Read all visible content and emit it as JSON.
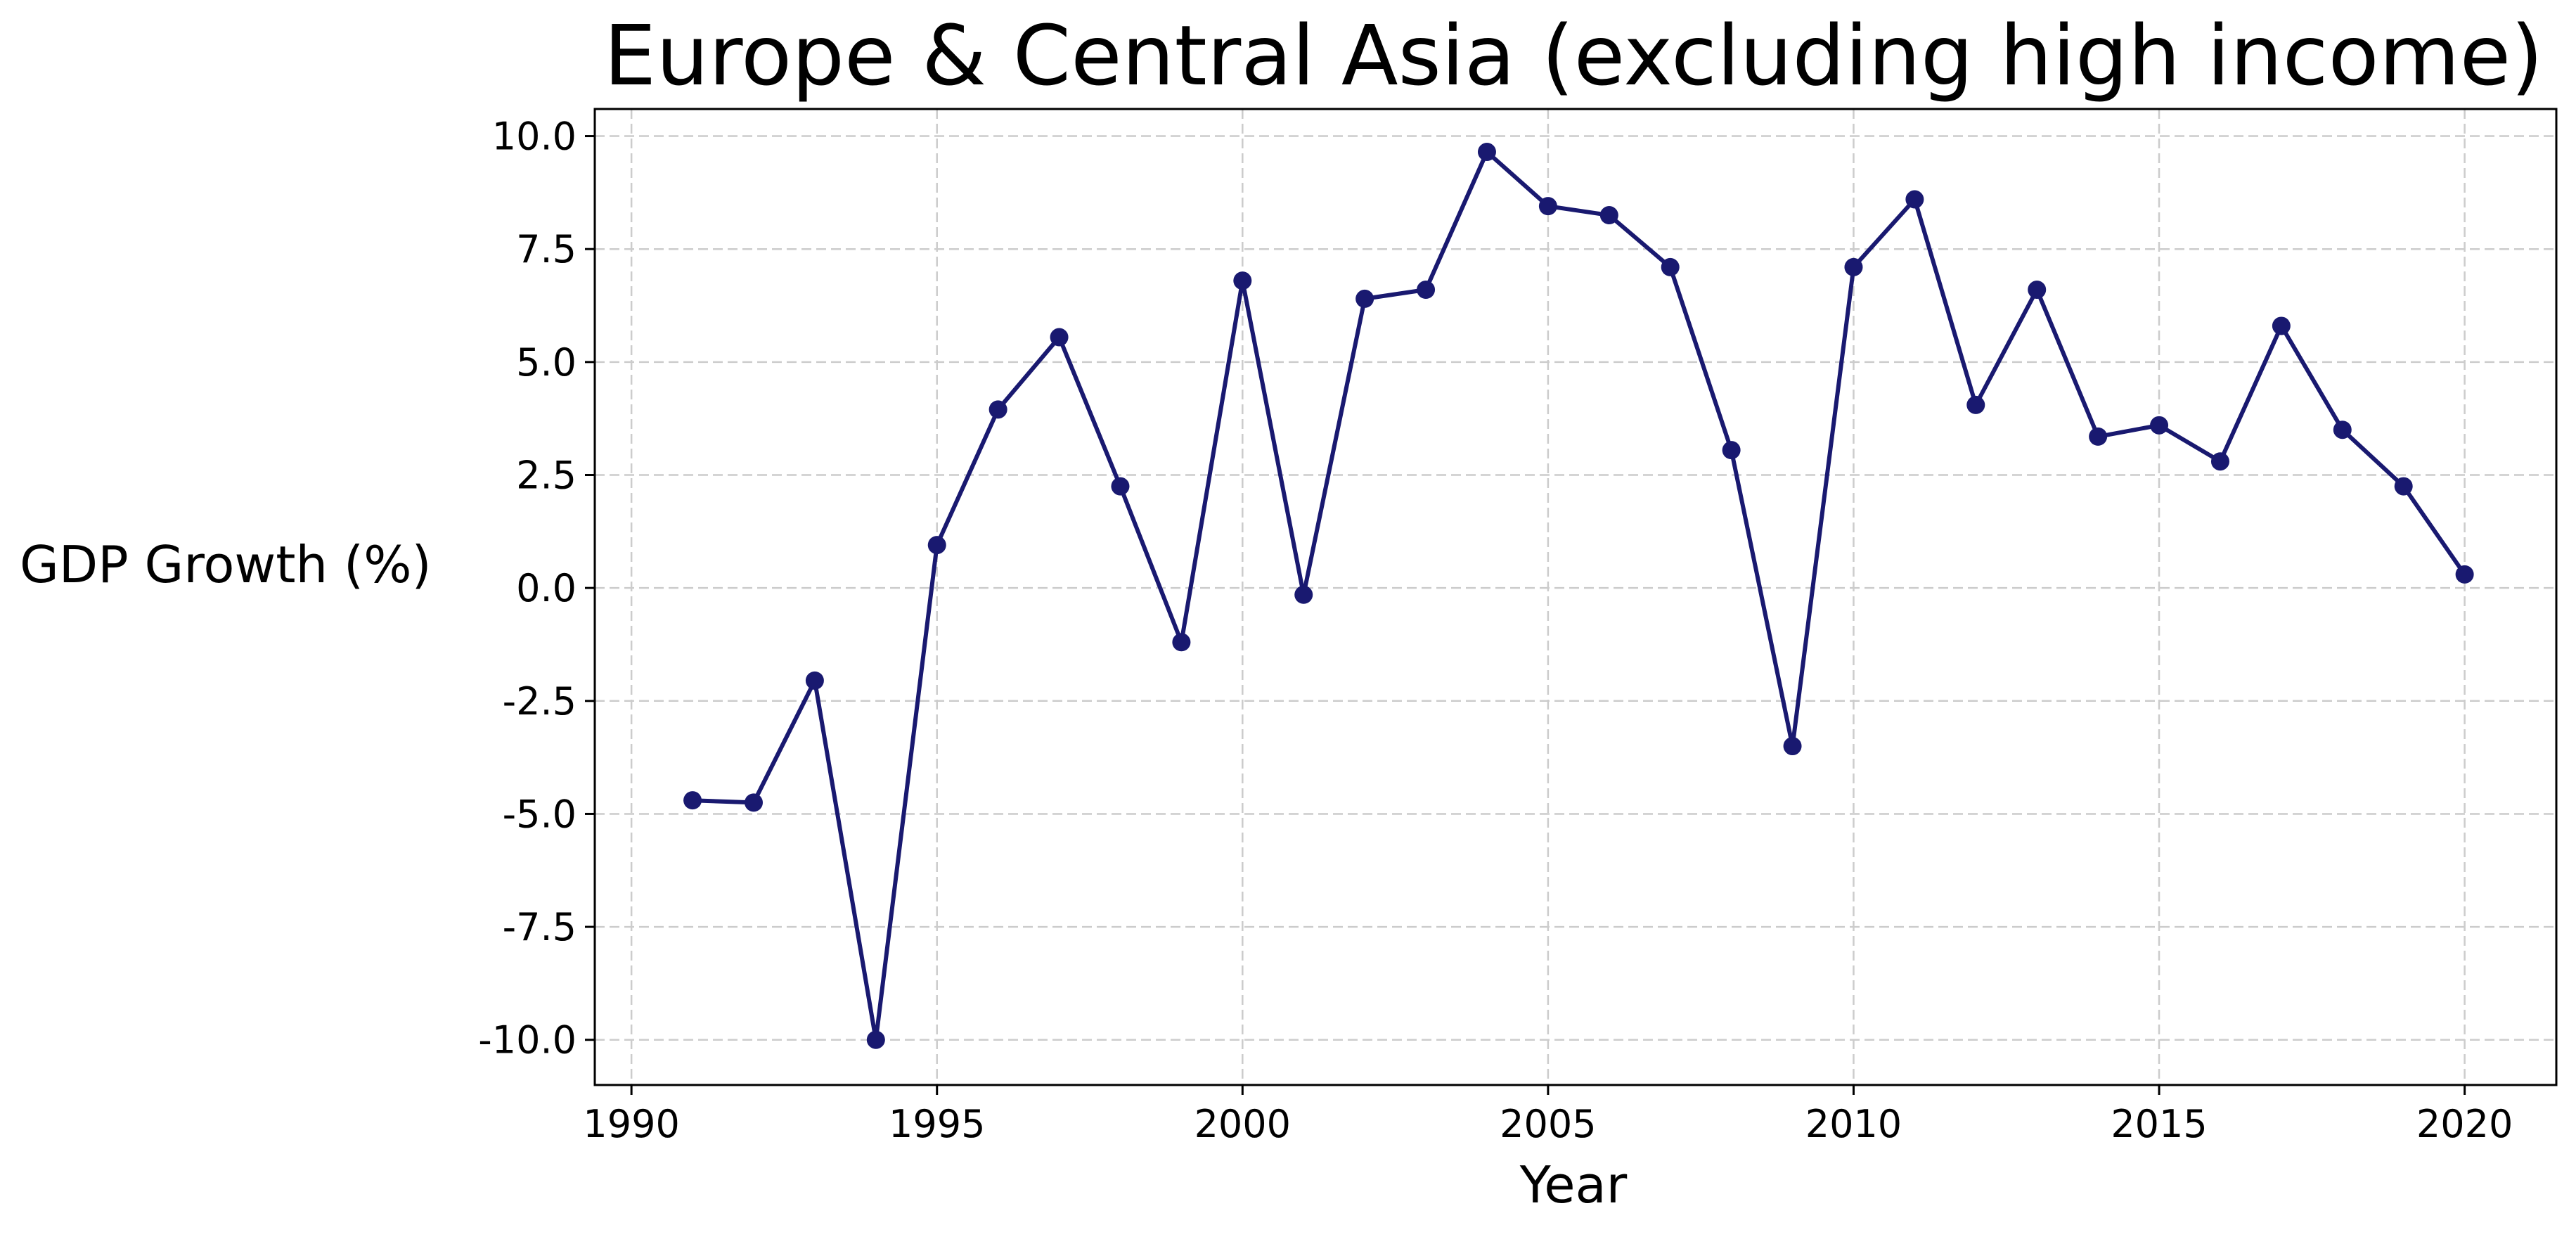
{
  "chart_data": {
    "type": "line",
    "title": "Europe & Central Asia (excluding high income)",
    "xlabel": "Year",
    "ylabel": "GDP Growth (%)",
    "xlim": [
      1989.4,
      2021.5
    ],
    "ylim": [
      -11.0,
      10.6
    ],
    "xticks": [
      1990,
      1995,
      2000,
      2005,
      2010,
      2015,
      2020
    ],
    "yticks": [
      -10.0,
      -7.5,
      -5.0,
      -2.5,
      0.0,
      2.5,
      5.0,
      7.5,
      10.0
    ],
    "ytick_labels": [
      "-10.0",
      "-7.5",
      "-5.0",
      "-2.5",
      "0.0",
      "2.5",
      "5.0",
      "7.5",
      "10.0"
    ],
    "grid": true,
    "legend": "none",
    "line_color": "#191970",
    "x": [
      1991,
      1992,
      1993,
      1994,
      1995,
      1996,
      1997,
      1998,
      1999,
      2000,
      2001,
      2002,
      2003,
      2004,
      2005,
      2006,
      2007,
      2008,
      2009,
      2010,
      2011,
      2012,
      2013,
      2014,
      2015,
      2016,
      2017,
      2018,
      2019,
      2020
    ],
    "series": [
      {
        "values": [
          -4.7,
          -4.75,
          -2.05,
          -10.0,
          0.95,
          3.95,
          5.55,
          2.25,
          -1.2,
          6.8,
          -0.15,
          6.4,
          6.6,
          9.65,
          8.45,
          8.25,
          7.1,
          3.05,
          -3.5,
          7.1,
          8.6,
          4.05,
          6.6,
          3.35,
          3.6,
          2.8,
          5.8,
          3.5,
          2.25,
          0.3
        ]
      }
    ]
  }
}
